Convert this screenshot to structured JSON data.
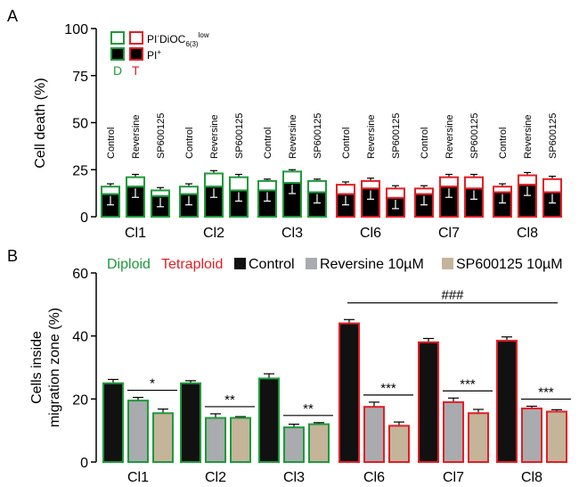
{
  "chart_data": [
    {
      "panel": "A",
      "type": "bar",
      "stacked": true,
      "ylabel": "Cell death (%)",
      "ylim": [
        0,
        100
      ],
      "yticks": [
        0,
        25,
        50,
        75,
        100
      ],
      "groups": [
        "Cl1",
        "Cl2",
        "Cl3",
        "Cl6",
        "Cl7",
        "Cl8"
      ],
      "group_ploidy": [
        "diploid",
        "diploid",
        "diploid",
        "tetraploid",
        "tetraploid",
        "tetraploid"
      ],
      "treatments": [
        "Control",
        "Reversine",
        "SP600125"
      ],
      "series": [
        {
          "name": "PI+",
          "values": [
            [
              12,
              16,
              11
            ],
            [
              12,
              16,
              14
            ],
            [
              14,
              18,
              13
            ],
            [
              12,
              15,
              10
            ],
            [
              12,
              16,
              15
            ],
            [
              13,
              17,
              13
            ]
          ]
        },
        {
          "name": "PI-DiOC6(3)low",
          "values": [
            [
              4,
              5,
              3
            ],
            [
              4,
              7,
              7
            ],
            [
              5,
              6,
              6
            ],
            [
              5,
              4,
              5
            ],
            [
              3,
              5,
              6
            ],
            [
              3,
              5,
              7
            ]
          ]
        }
      ],
      "totals": [
        [
          16,
          21,
          14
        ],
        [
          16,
          23,
          21
        ],
        [
          19,
          24,
          19
        ],
        [
          17,
          19,
          15
        ],
        [
          15,
          21,
          21
        ],
        [
          16,
          22,
          20
        ]
      ],
      "err_up": [
        1.5,
        1.5,
        1,
        1.5,
        1.5,
        1.5
      ],
      "legend": {
        "row1": "PI",
        "row1_sup_a": "-",
        "row1_mid": "DiOC",
        "row1_sub": "6(3)",
        "row1_sup_b": "low",
        "row2": "PI",
        "row2_sup": "+",
        "d": "D",
        "t": "T"
      }
    },
    {
      "panel": "B",
      "type": "bar",
      "ylabel_line1": "Cells inside",
      "ylabel_line2": "migration zone (%)",
      "ylim": [
        0,
        60
      ],
      "yticks": [
        0,
        20,
        40,
        60
      ],
      "categories": [
        "Cl1",
        "Cl2",
        "Cl3",
        "Cl6",
        "Cl7",
        "Cl8"
      ],
      "series": [
        {
          "name": "Control",
          "values": [
            25,
            25,
            26.5,
            44,
            38,
            38.5
          ],
          "errors": [
            1.2,
            0.8,
            1.5,
            1.2,
            1.2,
            1.2
          ]
        },
        {
          "name": "Reversine 10µM",
          "values": [
            19.5,
            14,
            11,
            17.5,
            19,
            17
          ],
          "errors": [
            1,
            1.3,
            1,
            1.5,
            1.3,
            0.7
          ]
        },
        {
          "name": "SP600125 10µM",
          "values": [
            15.5,
            14,
            12,
            11.5,
            15.5,
            16
          ],
          "errors": [
            1.3,
            0.4,
            0.5,
            1.2,
            1.2,
            0.6
          ]
        }
      ],
      "significance": [
        "*",
        "**",
        "**",
        "***",
        "***",
        "***"
      ],
      "overall_significance": "###",
      "legend": {
        "diploid": "Diploid",
        "tetraploid": "Tetraploid",
        "control": "Control",
        "reversine": "Reversine 10µM",
        "sp600125": "SP600125 10µM"
      }
    }
  ],
  "panel_labels": [
    "A",
    "B"
  ],
  "colors": {
    "diploid": "#1e9a3a",
    "tetraploid": "#e31e24",
    "control": "#111111",
    "reversine": "#a9abae",
    "sp600125": "#c4b49a"
  }
}
